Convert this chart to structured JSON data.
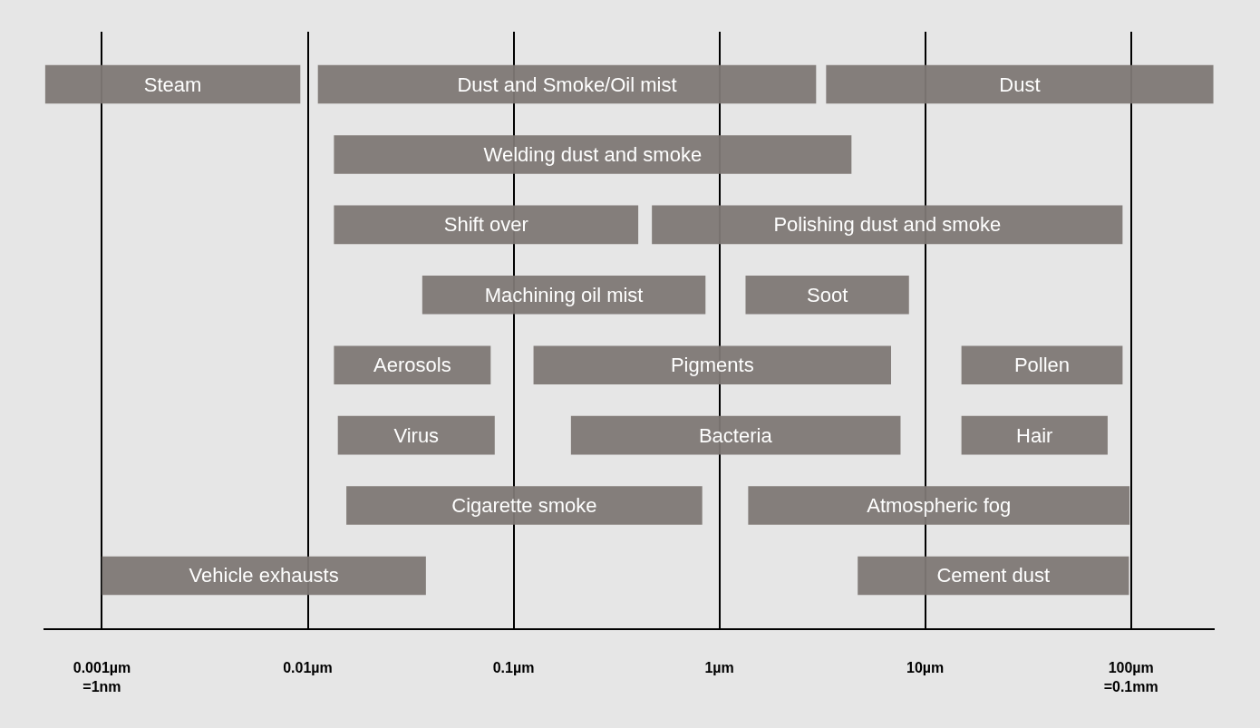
{
  "chart_data": {
    "type": "bar",
    "orientation": "horizontal",
    "log": "x",
    "grid": "x",
    "tick_labels": "x",
    "categories": [
      null,
      null,
      null,
      null,
      null,
      null,
      null,
      null
    ],
    "xlim": [
      0.00052,
      255
    ],
    "xticks": [
      {
        "value": 0.001,
        "label": "0.001µm\n=1nm"
      },
      {
        "value": 0.01,
        "label": "0.01µm"
      },
      {
        "value": 0.1,
        "label": "0.1µm"
      },
      {
        "value": 1,
        "label": "1µm"
      },
      {
        "value": 10,
        "label": "10µm"
      },
      {
        "value": 100,
        "label": "100µm\n=0.1mm"
      }
    ],
    "series": [
      {
        "color": "#7f7975",
        "base": [
          0.00053,
          0.0134,
          0.0134,
          0.036,
          0.0134,
          0.014,
          0.0154,
          0.001
        ],
        "values": [
          0.00867,
          4.37,
          0.39,
          0.82,
          0.064,
          0.067,
          0.81,
          0.0365
        ],
        "value_labels": [
          "Steam",
          "Welding dust and smoke",
          "Shift over",
          "Machining oil mist",
          "Aerosols",
          "Virus",
          "Cigarette smoke",
          "Vehicle exhausts"
        ]
      },
      {
        "color": "#7f7975",
        "base": [
          0.0112,
          null,
          0.47,
          1.34,
          0.125,
          0.19,
          1.38,
          4.7
        ],
        "values": [
          2.94,
          null,
          90.5,
          7.0,
          6.7,
          7.4,
          97,
          93
        ],
        "value_labels": [
          "Dust and Smoke/Oil mist",
          null,
          "Polishing dust and smoke",
          "Soot",
          "Pigments",
          "Bacteria",
          "Atmospheric fog",
          "Cement dust"
        ]
      },
      {
        "color": "#7f7975",
        "base": [
          3.3,
          null,
          null,
          null,
          15,
          15,
          null,
          null
        ],
        "values": [
          248,
          null,
          null,
          null,
          76,
          62,
          null,
          null
        ],
        "value_labels": [
          "Dust",
          null,
          null,
          null,
          "Pollen",
          "Hair",
          null,
          null
        ]
      }
    ]
  }
}
